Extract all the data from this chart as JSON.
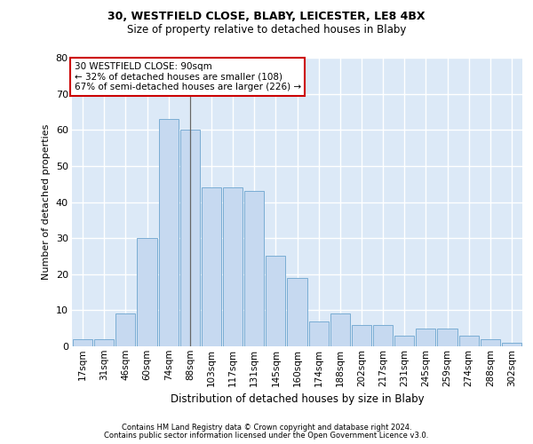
{
  "title1": "30, WESTFIELD CLOSE, BLABY, LEICESTER, LE8 4BX",
  "title2": "Size of property relative to detached houses in Blaby",
  "xlabel": "Distribution of detached houses by size in Blaby",
  "ylabel": "Number of detached properties",
  "all_categories": [
    "17sqm",
    "31sqm",
    "46sqm",
    "60sqm",
    "74sqm",
    "88sqm",
    "103sqm",
    "117sqm",
    "131sqm",
    "145sqm",
    "160sqm",
    "174sqm",
    "188sqm",
    "202sqm",
    "217sqm",
    "231sqm",
    "245sqm",
    "259sqm",
    "274sqm",
    "288sqm",
    "302sqm"
  ],
  "all_values": [
    2,
    2,
    9,
    30,
    63,
    60,
    44,
    44,
    43,
    25,
    19,
    7,
    9,
    6,
    6,
    3,
    5,
    5,
    3,
    2,
    1
  ],
  "bar_color": "#c6d9f0",
  "bar_edge_color": "#7aadd4",
  "vline_color": "#666666",
  "property_size": "90sqm",
  "pct_smaller": 32,
  "n_smaller": 108,
  "pct_larger_semi": 67,
  "n_larger_semi": 226,
  "ylim": [
    0,
    80
  ],
  "yticks": [
    0,
    10,
    20,
    30,
    40,
    50,
    60,
    70,
    80
  ],
  "footer1": "Contains HM Land Registry data © Crown copyright and database right 2024.",
  "footer2": "Contains public sector information licensed under the Open Government Licence v3.0.",
  "bg_color": "#dce9f7",
  "grid_color": "#ffffff",
  "property_bin_index": 5,
  "ann_box_edge_color": "#cc0000",
  "ann_box_face_color": "#ffffff",
  "title1_fontsize": 9.0,
  "title2_fontsize": 8.5,
  "ylabel_fontsize": 8.0,
  "xlabel_fontsize": 8.5,
  "footer_fontsize": 6.0
}
